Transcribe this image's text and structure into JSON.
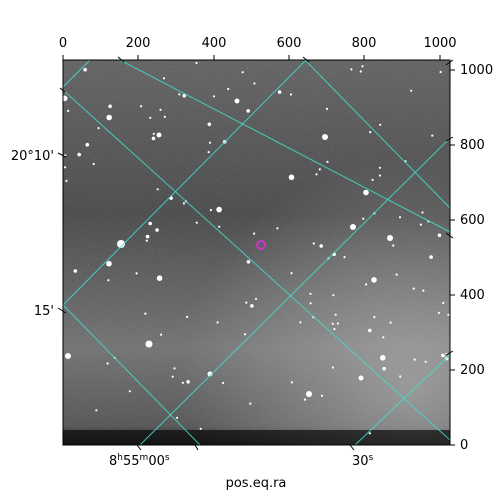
{
  "figure": {
    "xlabel": "pos.eq.ra",
    "top_ticks": [
      "0",
      "200",
      "400",
      "600",
      "800",
      "1000"
    ],
    "right_ticks": [
      "0",
      "200",
      "400",
      "600",
      "800",
      "1000"
    ],
    "ra_ticks": [
      {
        "main": "8",
        "h": "h",
        "m_val": "55",
        "m": "m",
        "s_val": "00",
        "s": "s"
      },
      {
        "text": "30",
        "s": "s"
      }
    ],
    "dec_ticks": [
      "20°10'",
      "15'"
    ],
    "colors": {
      "grid": "#40e0d0",
      "marker": "#cc33cc",
      "frame": "#000000"
    },
    "marker_icon": "target-circle-icon"
  }
}
